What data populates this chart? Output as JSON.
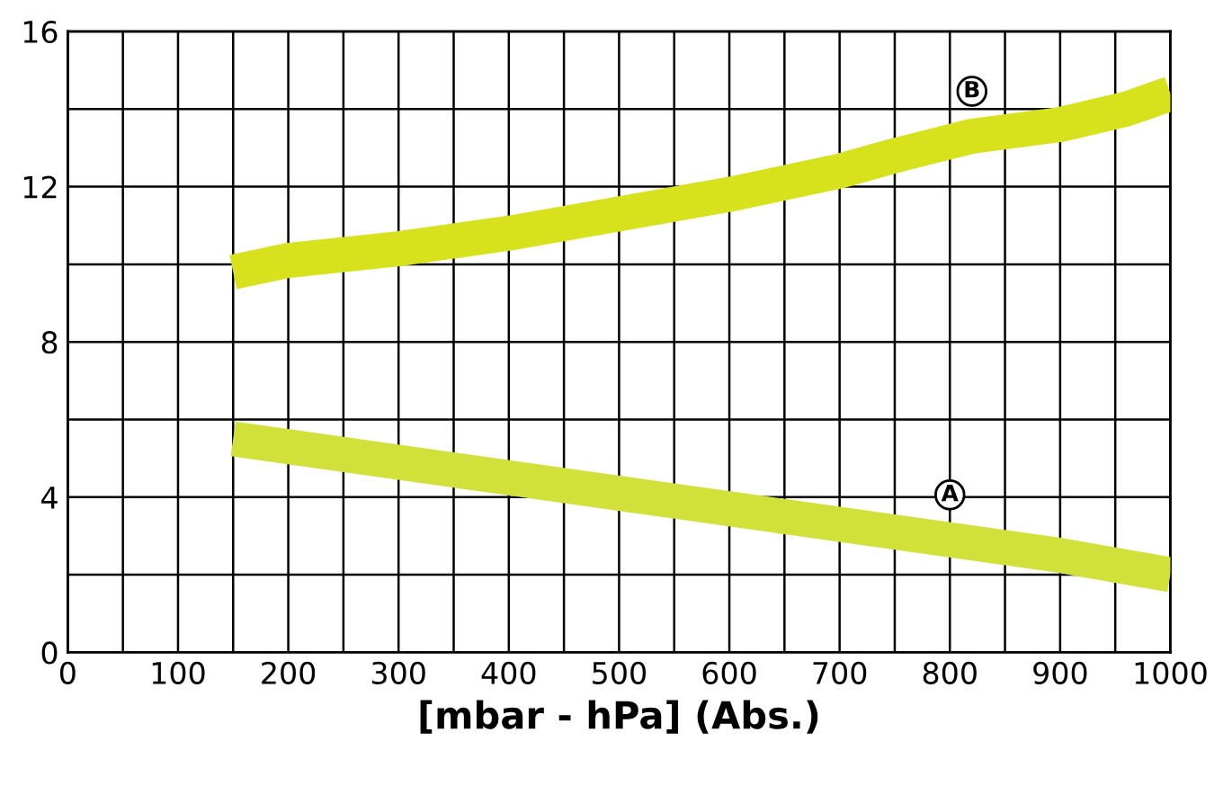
{
  "chart_data": {
    "type": "line",
    "xlabel": "[mbar - hPa] (Abs.)",
    "series": [
      {
        "name": "A",
        "color": "#d2e03a",
        "x": [
          150,
          300,
          400,
          500,
          600,
          700,
          800,
          900,
          1000
        ],
        "values": [
          5.5,
          4.9,
          4.5,
          4.1,
          3.7,
          3.3,
          2.9,
          2.5,
          2.0
        ]
      },
      {
        "name": "B",
        "color": "#d8e21c",
        "x": [
          150,
          200,
          300,
          400,
          500,
          600,
          700,
          750,
          820,
          900,
          960,
          1000
        ],
        "values": [
          9.8,
          10.1,
          10.4,
          10.8,
          11.3,
          11.8,
          12.4,
          12.8,
          13.3,
          13.6,
          14.0,
          14.4
        ]
      }
    ],
    "xlim": [
      0,
      1000
    ],
    "ylim": [
      0,
      16
    ],
    "xticks": [
      0,
      {
        "value": 50,
        "label": null
      },
      100,
      {
        "value": 150,
        "label": null
      },
      200,
      {
        "value": 250,
        "label": null
      },
      300,
      {
        "value": 350,
        "label": null
      },
      400,
      {
        "value": 450,
        "label": null
      },
      500,
      {
        "value": 550,
        "label": null
      },
      600,
      {
        "value": 650,
        "label": null
      },
      700,
      {
        "value": 750,
        "label": null
      },
      800,
      {
        "value": 850,
        "label": null
      },
      900,
      {
        "value": 950,
        "label": null
      },
      1000
    ],
    "yticks": [
      0,
      {
        "value": 2,
        "label": null
      },
      4,
      {
        "value": 6,
        "label": null
      },
      8,
      {
        "value": 10,
        "label": null
      },
      12,
      {
        "value": 14,
        "label": null
      },
      16
    ],
    "grid": true,
    "marker": "none",
    "line_style": "solid"
  }
}
